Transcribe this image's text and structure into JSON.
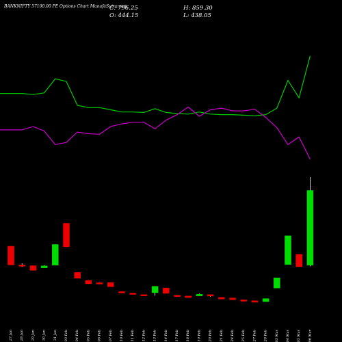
{
  "header": {
    "title": "BANKNIFTY 57100.00 PE Options Chart MunafaSutra.com",
    "close": "C: 796.25",
    "open": "O: 444.15",
    "high": "H: 859.30",
    "low": "L: 438.05"
  },
  "colors": {
    "background": "#000000",
    "up": "#00dd00",
    "down": "#ee0000",
    "line_green": "#00cc00",
    "line_magenta": "#cc00cc",
    "text": "#ffffff"
  },
  "chart_data": {
    "type": "candlestick",
    "categories": [
      "27 Jan",
      "28 Jan",
      "29 Jan",
      "30 Jan",
      "31 Jan",
      "03 Feb",
      "04 Feb",
      "05 Feb",
      "06 Feb",
      "07 Feb",
      "10 Feb",
      "11 Feb",
      "12 Feb",
      "13 Feb",
      "14 Feb",
      "17 Feb",
      "18 Feb",
      "19 Feb",
      "20 Feb",
      "21 Feb",
      "24 Feb",
      "25 Feb",
      "27 Feb",
      "28 Feb",
      "03 Mar",
      "04 Mar",
      "05 Mar",
      "06 Mar"
    ],
    "candles": [
      {
        "open": 533,
        "high": 533,
        "low": 445,
        "close": 445
      },
      {
        "open": 445,
        "high": 452,
        "low": 436,
        "close": 441
      },
      {
        "open": 441,
        "high": 441,
        "low": 419,
        "close": 419
      },
      {
        "open": 431,
        "high": 443,
        "low": 431,
        "close": 440
      },
      {
        "open": 444,
        "high": 541,
        "low": 444,
        "close": 541
      },
      {
        "open": 641,
        "high": 641,
        "low": 530,
        "close": 530
      },
      {
        "open": 409,
        "high": 409,
        "low": 382,
        "close": 382
      },
      {
        "open": 372,
        "high": 372,
        "low": 356,
        "close": 356
      },
      {
        "open": 361,
        "high": 363,
        "low": 357,
        "close": 358
      },
      {
        "open": 362,
        "high": 362,
        "low": 342,
        "close": 342
      },
      {
        "open": 319,
        "high": 319,
        "low": 314,
        "close": 314
      },
      {
        "open": 312,
        "high": 312,
        "low": 307,
        "close": 307
      },
      {
        "open": 305,
        "high": 305,
        "low": 303,
        "close": 304
      },
      {
        "open": 314,
        "high": 344,
        "low": 300,
        "close": 344
      },
      {
        "open": 336,
        "high": 336,
        "low": 311,
        "close": 311
      },
      {
        "open": 302,
        "high": 302,
        "low": 296,
        "close": 296
      },
      {
        "open": 298,
        "high": 298,
        "low": 291,
        "close": 291
      },
      {
        "open": 299,
        "high": 309,
        "low": 299,
        "close": 306
      },
      {
        "open": 305,
        "high": 305,
        "low": 295,
        "close": 298
      },
      {
        "open": 292,
        "high": 292,
        "low": 284,
        "close": 284
      },
      {
        "open": 289,
        "high": 289,
        "low": 281,
        "close": 281
      },
      {
        "open": 280,
        "high": 280,
        "low": 276,
        "close": 277
      },
      {
        "open": 276,
        "high": 276,
        "low": 269,
        "close": 269
      },
      {
        "open": 272,
        "high": 286,
        "low": 272,
        "close": 286
      },
      {
        "open": 336,
        "high": 384,
        "low": 336,
        "close": 384
      },
      {
        "open": 447,
        "high": 582,
        "low": 447,
        "close": 582
      },
      {
        "open": 495,
        "high": 495,
        "low": 437,
        "close": 437
      },
      {
        "open": 444,
        "high": 859,
        "low": 438,
        "close": 796
      }
    ],
    "lines": [
      {
        "values": [
          55,
          55,
          53,
          56,
          82,
          77,
          33,
          29,
          29,
          25,
          21,
          21,
          20,
          27,
          20,
          18,
          17,
          21,
          17,
          16,
          16,
          15,
          14,
          16,
          28,
          79,
          47,
          124
        ]
      },
      {
        "values": [
          -12,
          -12,
          -6,
          -14,
          -39,
          -35,
          -16,
          -19,
          -20,
          -6,
          -1,
          2,
          2,
          -10,
          6,
          16,
          30,
          13,
          25,
          28,
          23,
          23,
          26,
          11,
          -8,
          -39,
          -25,
          -66
        ]
      }
    ]
  }
}
